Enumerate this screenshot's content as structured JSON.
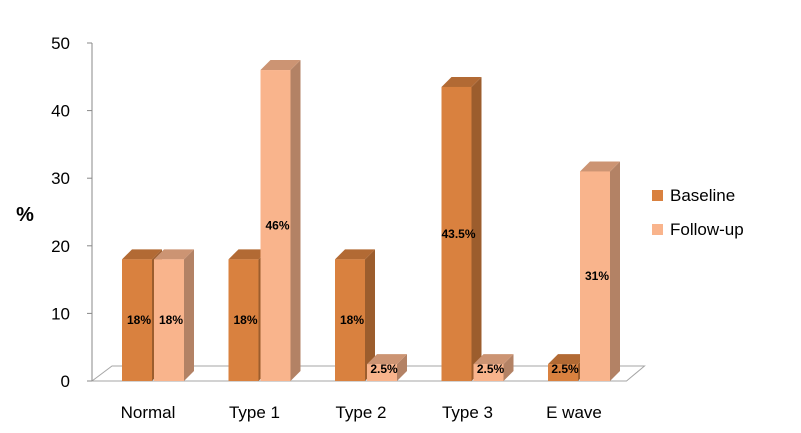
{
  "chart_data": {
    "type": "bar",
    "style": "3d-clustered-column",
    "categories": [
      "Normal",
      "Type 1",
      "Type 2",
      "Type 3",
      "E wave"
    ],
    "series": [
      {
        "name": "Baseline",
        "color": "#D9813F",
        "values": [
          18,
          18,
          18,
          43.5,
          2.5
        ],
        "labels": [
          "18%",
          "18%",
          "18%",
          "43.5%",
          "2.5%"
        ]
      },
      {
        "name": "Follow-up",
        "color": "#F9B48C",
        "values": [
          18,
          46,
          2.5,
          2.5,
          31
        ],
        "labels": [
          "18%",
          "46%",
          "2.5%",
          "2.5%",
          "31%"
        ]
      }
    ],
    "ylabel": "%",
    "ylim": [
      0,
      50
    ],
    "yticks": [
      "0",
      "10",
      "20",
      "30",
      "40",
      "50"
    ],
    "grid": false,
    "legend": "right"
  }
}
